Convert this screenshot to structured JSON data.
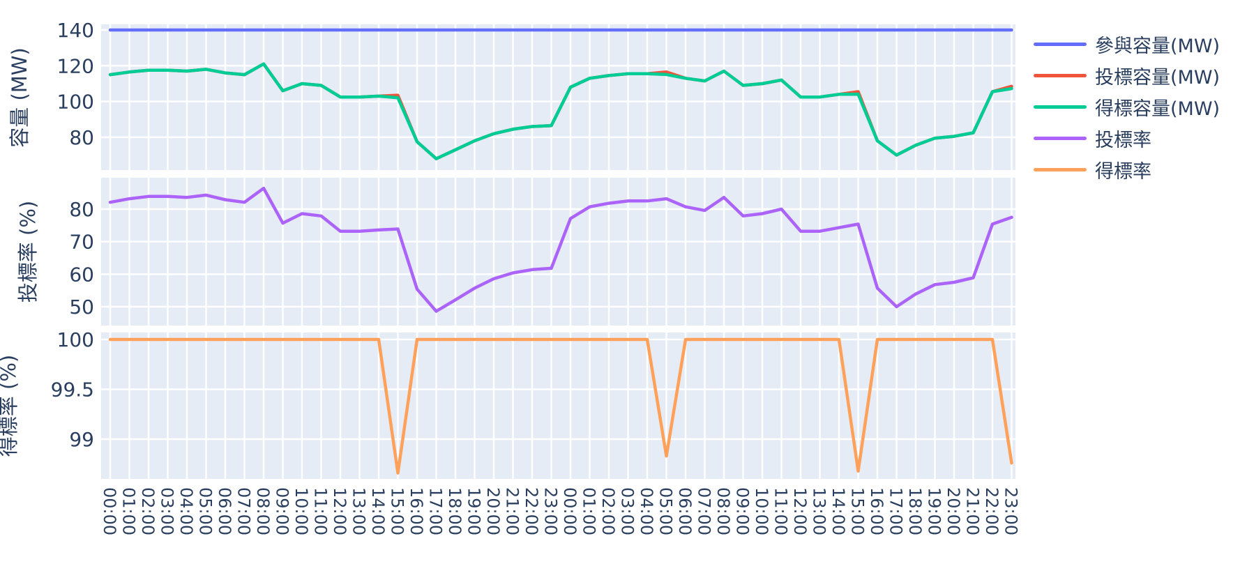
{
  "layout": {
    "plot_bgcolor": "#e5ecf6",
    "grid_color": "#ffffff",
    "font_color": "#2a3f5f",
    "legend_position": "right"
  },
  "x_categories": [
    "00:00",
    "01:00",
    "02:00",
    "03:00",
    "04:00",
    "05:00",
    "06:00",
    "07:00",
    "08:00",
    "09:00",
    "10:00",
    "11:00",
    "12:00",
    "13:00",
    "14:00",
    "15:00",
    "16:00",
    "17:00",
    "18:00",
    "19:00",
    "20:00",
    "21:00",
    "22:00",
    "23:00",
    "00:00",
    "01:00",
    "02:00",
    "03:00",
    "04:00",
    "05:00",
    "06:00",
    "07:00",
    "08:00",
    "09:00",
    "10:00",
    "11:00",
    "12:00",
    "13:00",
    "14:00",
    "15:00",
    "16:00",
    "17:00",
    "18:00",
    "19:00",
    "20:00",
    "21:00",
    "22:00",
    "23:00"
  ],
  "chart_data": [
    {
      "type": "line",
      "title": "",
      "xlabel": "",
      "ylabel": "容量 (MW)",
      "yticks": [
        140,
        120,
        100,
        80
      ],
      "ylim": [
        62,
        143
      ],
      "grid": true,
      "series": [
        {
          "name": "參與容量(MW)",
          "color": "#636efa",
          "values": [
            140,
            140,
            140,
            140,
            140,
            140,
            140,
            140,
            140,
            140,
            140,
            140,
            140,
            140,
            140,
            140,
            140,
            140,
            140,
            140,
            140,
            140,
            140,
            140,
            140,
            140,
            140,
            140,
            140,
            140,
            140,
            140,
            140,
            140,
            140,
            140,
            140,
            140,
            140,
            140,
            140,
            140,
            140,
            140,
            140,
            140,
            140,
            140
          ]
        },
        {
          "name": "投標容量(MW)",
          "color": "#ef553b",
          "values": [
            115,
            116.5,
            117.5,
            117.5,
            117,
            118,
            116,
            115,
            121,
            106,
            110,
            109,
            102.5,
            102.5,
            103,
            103.5,
            77.5,
            68,
            73,
            78,
            82,
            84.5,
            86,
            86.5,
            108,
            113,
            114.5,
            115.5,
            115.5,
            116.5,
            113,
            111.5,
            117,
            109,
            110,
            112,
            102.5,
            102.5,
            104,
            105.5,
            78,
            70,
            75.5,
            79.5,
            80.5,
            82.5,
            105.5,
            108.5
          ]
        },
        {
          "name": "得標容量(MW)",
          "color": "#00cc96",
          "values": [
            115,
            116.5,
            117.5,
            117.5,
            117,
            118,
            116,
            115,
            121,
            106,
            110,
            109,
            102.5,
            102.5,
            103,
            102.1,
            77.5,
            68,
            73,
            78,
            82,
            84.5,
            86,
            86.5,
            108,
            113,
            114.5,
            115.5,
            115.5,
            115.1,
            113,
            111.5,
            117,
            109,
            110,
            112,
            102.5,
            102.5,
            104,
            104.1,
            78,
            70,
            75.5,
            79.5,
            80.5,
            82.5,
            105.5,
            107.2
          ]
        }
      ]
    },
    {
      "type": "line",
      "title": "",
      "xlabel": "",
      "ylabel": "投標率 (%)",
      "yticks": [
        80,
        70,
        60,
        50
      ],
      "ylim": [
        44,
        90
      ],
      "grid": true,
      "series": [
        {
          "name": "投標率",
          "color": "#ab63fa",
          "values": [
            82.1,
            83.2,
            83.9,
            83.9,
            83.6,
            84.3,
            82.9,
            82.1,
            86.4,
            75.7,
            78.6,
            77.9,
            73.2,
            73.2,
            73.6,
            73.9,
            55.4,
            48.6,
            52.1,
            55.7,
            58.6,
            60.4,
            61.4,
            61.8,
            77.1,
            80.7,
            81.8,
            82.5,
            82.5,
            83.2,
            80.7,
            79.6,
            83.6,
            77.9,
            78.6,
            80,
            73.2,
            73.2,
            74.3,
            75.4,
            55.7,
            50,
            53.9,
            56.8,
            57.5,
            58.9,
            75.4,
            77.5
          ]
        }
      ]
    },
    {
      "type": "line",
      "title": "",
      "xlabel": "",
      "ylabel": "得標率 (%)",
      "yticks": [
        100,
        99.5,
        99
      ],
      "ylim": [
        98.6,
        100.07
      ],
      "grid": true,
      "series": [
        {
          "name": "得標率",
          "color": "#ffa15a",
          "values": [
            100,
            100,
            100,
            100,
            100,
            100,
            100,
            100,
            100,
            100,
            100,
            100,
            100,
            100,
            100,
            98.66,
            100,
            100,
            100,
            100,
            100,
            100,
            100,
            100,
            100,
            100,
            100,
            100,
            100,
            98.83,
            100,
            100,
            100,
            100,
            100,
            100,
            100,
            100,
            100,
            98.68,
            100,
            100,
            100,
            100,
            100,
            100,
            100,
            98.76
          ]
        }
      ]
    }
  ],
  "legend": {
    "items": [
      {
        "label": "參與容量(MW)",
        "color": "#636efa"
      },
      {
        "label": "投標容量(MW)",
        "color": "#ef553b"
      },
      {
        "label": "得標容量(MW)",
        "color": "#00cc96"
      },
      {
        "label": "投標率",
        "color": "#ab63fa"
      },
      {
        "label": "得標率",
        "color": "#ffa15a"
      }
    ]
  }
}
